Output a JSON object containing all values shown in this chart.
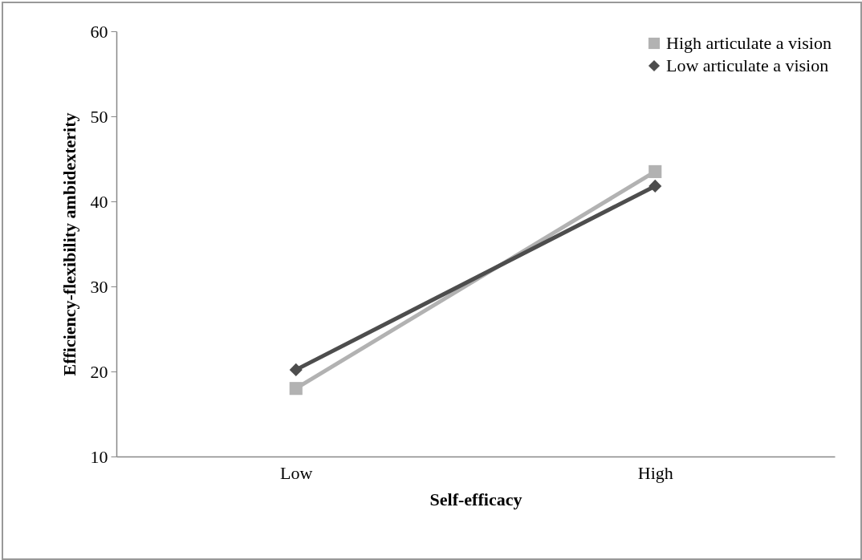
{
  "chart_data": {
    "type": "line",
    "xlabel": "Self-efficacy",
    "ylabel": "Efficiency-flexibility ambidexterity",
    "categories": [
      "Low",
      "High"
    ],
    "series": [
      {
        "name": "High articulate a vision",
        "color": "#b2b2b2",
        "marker": "square",
        "values": [
          18.0,
          43.5
        ]
      },
      {
        "name": "Low articulate a vision",
        "color": "#4d4d4d",
        "marker": "diamond",
        "values": [
          20.2,
          41.8
        ]
      }
    ],
    "ylim": [
      10,
      60
    ],
    "yticks": [
      10,
      20,
      30,
      40,
      50,
      60
    ],
    "grid": false,
    "legend": "top right"
  }
}
